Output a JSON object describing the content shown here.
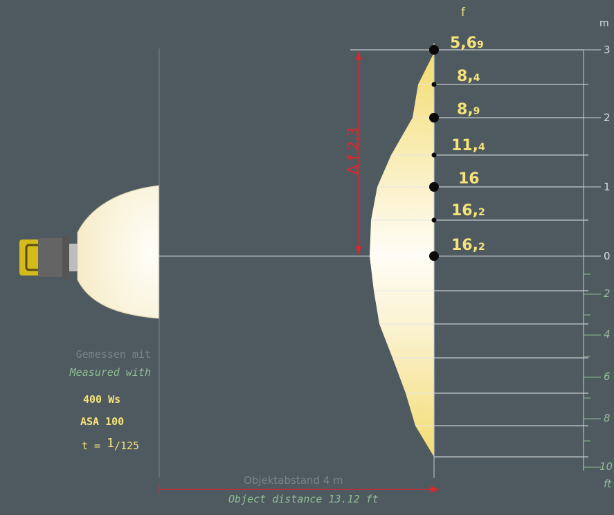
{
  "header": {
    "f_label": "f",
    "m_label": "m"
  },
  "f_values": [
    {
      "main": "5,6",
      "sub": "9"
    },
    {
      "main": "8,",
      "sub": "4"
    },
    {
      "main": "8,",
      "sub": "9"
    },
    {
      "main": "11,",
      "sub": "4"
    },
    {
      "main": "16",
      "sub": ""
    },
    {
      "main": "16,",
      "sub": "2"
    },
    {
      "main": "16,",
      "sub": "2"
    }
  ],
  "delta_label": "Δ f 2,3",
  "scale_m": [
    "3",
    "2",
    "1",
    "0"
  ],
  "scale_ft": [
    "2",
    "4",
    "6",
    "8",
    "10",
    "ft"
  ],
  "measured": {
    "de": "Gemessen mit",
    "en": "Measured with",
    "power": "400 Ws",
    "asa": "ASA 100",
    "time_prefix": "t = ",
    "time_num": "1",
    "time_den": "/125"
  },
  "distance": {
    "de": "Objektabstand  4 m",
    "en": "Object distance 13.12 ft"
  },
  "colors": {
    "background": "#4f5a60",
    "accent_yellow": "#f5e27a",
    "accent_red": "#e0252b",
    "accent_green": "#8fbf94"
  }
}
